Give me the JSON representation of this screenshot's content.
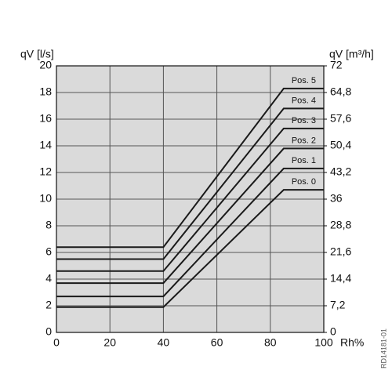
{
  "chart_data": {
    "type": "line",
    "y_label": "qV [l/s]",
    "y2_label": "qV [m³/h]",
    "x_label": "Rh%",
    "code": "RD14181-01",
    "x": [
      0,
      40,
      85,
      100
    ],
    "series": [
      {
        "name": "Pos. 0",
        "color": "#1a1a1a",
        "values": [
          1.9,
          1.9,
          10.7,
          10.7
        ]
      },
      {
        "name": "Pos. 1",
        "color": "#1a1a1a",
        "values": [
          2.7,
          2.7,
          12.3,
          12.3
        ]
      },
      {
        "name": "Pos. 2",
        "color": "#1a1a1a",
        "values": [
          3.7,
          3.7,
          13.8,
          13.8
        ]
      },
      {
        "name": "Pos. 3",
        "color": "#1a1a1a",
        "values": [
          4.6,
          4.6,
          15.3,
          15.3
        ]
      },
      {
        "name": "Pos. 4",
        "color": "#1a1a1a",
        "values": [
          5.5,
          5.5,
          16.8,
          16.8
        ]
      },
      {
        "name": "Pos. 5",
        "color": "#1a1a1a",
        "values": [
          6.4,
          6.4,
          18.3,
          18.3
        ]
      }
    ],
    "xlim": [
      0,
      100
    ],
    "xticks": [
      0,
      20,
      40,
      60,
      80,
      100
    ],
    "ylim": [
      0,
      20
    ],
    "yticks": [
      0,
      2,
      4,
      6,
      8,
      10,
      12,
      14,
      16,
      18,
      20
    ],
    "y2lim": [
      0,
      72
    ],
    "y2ticks": [
      0,
      {
        "value": 7.2,
        "label": "7,2"
      },
      {
        "value": 14.4,
        "label": "14,4"
      },
      {
        "value": 21.6,
        "label": "21,6"
      },
      {
        "value": 28.8,
        "label": "28,8"
      },
      36,
      {
        "value": 43.2,
        "label": "43,2"
      },
      {
        "value": 50.4,
        "label": "50,4"
      },
      {
        "value": 57.6,
        "label": "57,6"
      },
      {
        "value": 64.8,
        "label": "64,8"
      },
      72
    ],
    "grid": true
  }
}
